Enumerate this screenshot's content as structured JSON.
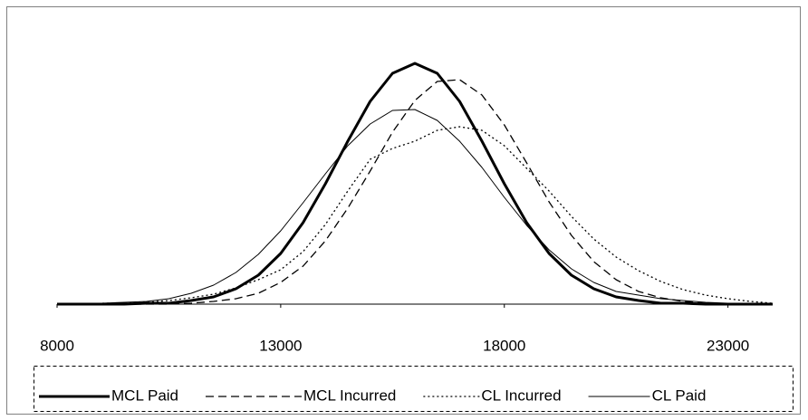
{
  "chart_data": {
    "type": "line",
    "x": [
      8000,
      8500,
      9000,
      9500,
      10000,
      10500,
      11000,
      11500,
      12000,
      12500,
      13000,
      13500,
      14000,
      14500,
      15000,
      15500,
      16000,
      16500,
      17000,
      17500,
      18000,
      18500,
      19000,
      19500,
      20000,
      20500,
      21000,
      21500,
      22000,
      22500,
      23000,
      23500,
      24000
    ],
    "series": [
      {
        "name": "MCL Paid",
        "color": "#000000",
        "line_style": "solid",
        "line_width": 3,
        "values": [
          0,
          0,
          0,
          0,
          1,
          1,
          4,
          8,
          17,
          32,
          56,
          90,
          133,
          180,
          224,
          255,
          266,
          255,
          224,
          180,
          133,
          90,
          56,
          32,
          17,
          8,
          4,
          1,
          1,
          0,
          0,
          0,
          0
        ]
      },
      {
        "name": "MCL Incurred",
        "color": "#000000",
        "line_style": "dashed",
        "line_width": 1.3,
        "values": [
          0,
          0,
          0,
          0,
          0,
          0,
          1,
          3,
          6,
          12,
          24,
          42,
          70,
          106,
          147,
          190,
          225,
          246,
          248,
          231,
          198,
          156,
          113,
          76,
          47,
          27,
          14,
          7,
          3,
          1,
          0,
          0,
          0
        ]
      },
      {
        "name": "CL Incurred",
        "color": "#000000",
        "line_style": "dotted",
        "line_width": 1.3,
        "values": [
          0,
          0,
          1,
          1,
          2,
          4,
          7,
          11,
          18,
          27,
          38,
          58,
          88,
          125,
          160,
          172,
          180,
          192,
          196,
          192,
          175,
          150,
          125,
          97,
          72,
          52,
          37,
          25,
          16,
          10,
          6,
          3,
          1
        ]
      },
      {
        "name": "CL Paid",
        "color": "#000000",
        "line_style": "solid",
        "line_width": 1,
        "values": [
          0,
          0,
          1,
          2,
          3,
          6,
          12,
          21,
          35,
          55,
          81,
          112,
          144,
          175,
          199,
          214,
          215,
          203,
          180,
          151,
          118,
          87,
          60,
          39,
          24,
          14,
          10,
          6,
          4,
          2,
          1,
          0,
          0
        ]
      }
    ],
    "xlim": [
      8000,
      24000
    ],
    "xticks": [
      8000,
      13000,
      18000,
      23000
    ],
    "ylim": [
      0,
      280
    ],
    "legend": "bottom"
  }
}
